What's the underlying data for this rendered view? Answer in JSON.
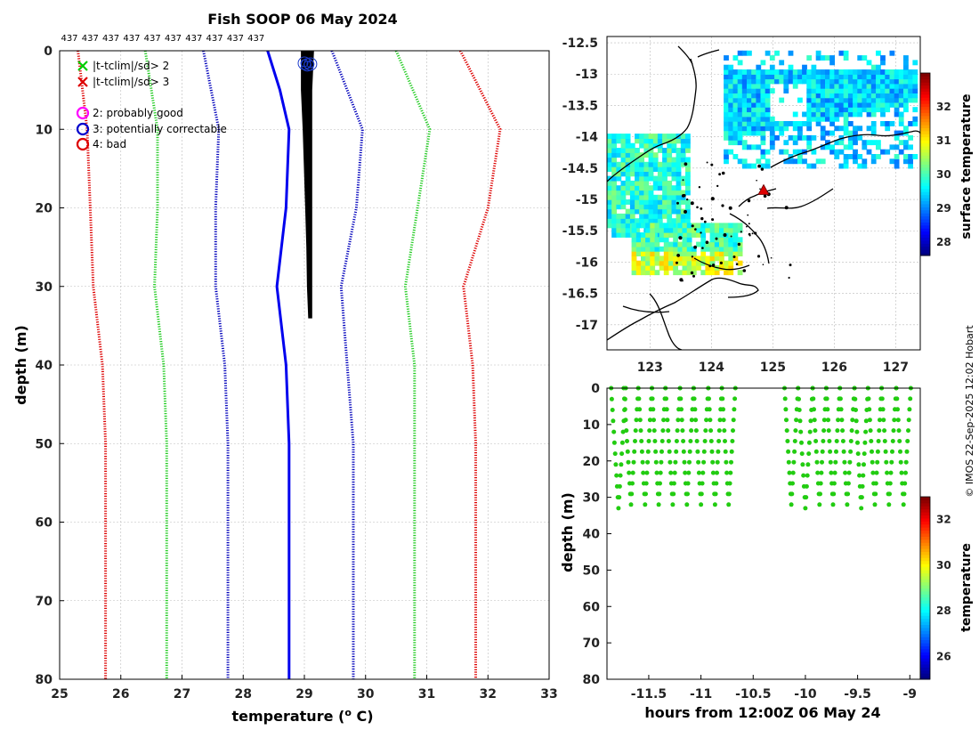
{
  "credit": "© IMOS 22-Sep-2025 12:02 Hobart",
  "chart_data": [
    {
      "type": "line",
      "title": "Fish SOOP 06 May 2024",
      "xlabel": "temperature (",
      "xlabel_sup": "o",
      "xlabel_tail": " C)",
      "ylabel": "depth (m)",
      "xlim": [
        25,
        33
      ],
      "ylim": [
        0,
        80
      ],
      "y_reversed": true,
      "grid": true,
      "x_ticks": [
        25,
        26,
        27,
        28,
        29,
        30,
        31,
        32,
        33
      ],
      "y_ticks": [
        0,
        10,
        20,
        30,
        40,
        50,
        60,
        70,
        80
      ],
      "top_counts": [
        "437",
        "437",
        "437",
        "437",
        "437",
        "437",
        "437",
        "437",
        "437",
        "437"
      ],
      "legend": [
        {
          "marker": "x",
          "color": "#00cc00",
          "label": "|t-tclim|/sd> 2"
        },
        {
          "marker": "x",
          "color": "#dd0000",
          "label": "|t-tclim|/sd> 3"
        },
        {
          "marker": "o",
          "color": "#ff00ff",
          "label": "2: probably good"
        },
        {
          "marker": "o",
          "color": "#0000cc",
          "label": "3: potentially correctable"
        },
        {
          "marker": "o",
          "color": "#dd0000",
          "label": "4: bad"
        }
      ],
      "series": [
        {
          "name": "clim -3sd",
          "color": "#dd0000",
          "style": "dotted",
          "depth": [
            0,
            10,
            20,
            30,
            40,
            50,
            80
          ],
          "temp": [
            25.3,
            25.45,
            25.5,
            25.55,
            25.7,
            25.75,
            25.75
          ]
        },
        {
          "name": "clim -2sd",
          "color": "#22cc22",
          "style": "dotted",
          "depth": [
            0,
            10,
            20,
            30,
            40,
            50,
            80
          ],
          "temp": [
            26.4,
            26.6,
            26.6,
            26.55,
            26.7,
            26.75,
            26.75
          ]
        },
        {
          "name": "clim -1sd",
          "color": "#0000bb",
          "style": "dotted",
          "depth": [
            0,
            10,
            20,
            30,
            40,
            50,
            80
          ],
          "temp": [
            27.35,
            27.6,
            27.55,
            27.55,
            27.7,
            27.75,
            27.75
          ]
        },
        {
          "name": "climatology",
          "color": "#0000ee",
          "style": "solid",
          "depth": [
            0,
            5,
            10,
            20,
            30,
            40,
            50,
            80
          ],
          "temp": [
            28.4,
            28.6,
            28.75,
            28.7,
            28.55,
            28.7,
            28.75,
            28.75
          ]
        },
        {
          "name": "clim +1sd",
          "color": "#0000bb",
          "style": "dotted",
          "depth": [
            0,
            10,
            20,
            30,
            40,
            50,
            80
          ],
          "temp": [
            29.45,
            29.95,
            29.85,
            29.6,
            29.7,
            29.8,
            29.8
          ]
        },
        {
          "name": "clim +2sd",
          "color": "#22cc22",
          "style": "dotted",
          "depth": [
            0,
            10,
            20,
            30,
            40,
            50,
            80
          ],
          "temp": [
            30.5,
            31.05,
            30.85,
            30.65,
            30.8,
            30.8,
            30.8
          ]
        },
        {
          "name": "clim +3sd",
          "color": "#dd0000",
          "style": "dotted",
          "depth": [
            0,
            10,
            20,
            30,
            40,
            50,
            80
          ],
          "temp": [
            31.55,
            32.2,
            32.0,
            31.6,
            31.75,
            31.8,
            31.8
          ]
        }
      ],
      "profiles": {
        "color": "#000000",
        "max_depth": 34,
        "band": [
          {
            "depth": 0,
            "tmin": 28.95,
            "tmax": 29.15
          },
          {
            "depth": 5,
            "tmin": 28.95,
            "tmax": 29.12
          },
          {
            "depth": 10,
            "tmin": 28.98,
            "tmax": 29.12
          },
          {
            "depth": 15,
            "tmin": 29.0,
            "tmax": 29.12
          },
          {
            "depth": 20,
            "tmin": 29.02,
            "tmax": 29.12
          },
          {
            "depth": 25,
            "tmin": 29.04,
            "tmax": 29.12
          },
          {
            "depth": 30,
            "tmin": 29.05,
            "tmax": 29.12
          },
          {
            "depth": 34,
            "tmin": 29.07,
            "tmax": 29.12
          }
        ],
        "flags": [
          {
            "temp": 29.0,
            "depth": 0.8,
            "color": "#1a3acc"
          },
          {
            "temp": 29.1,
            "depth": 0.9,
            "color": "#1a3acc"
          },
          {
            "temp": 29.05,
            "depth": 1.0,
            "color": "#1a3acc"
          }
        ]
      }
    },
    {
      "type": "heatmap",
      "xlim": [
        122.3,
        127.4
      ],
      "ylim": [
        -17.4,
        -12.4
      ],
      "x_ticks": [
        123,
        124,
        125,
        126,
        127
      ],
      "y_ticks": [
        -12.5,
        -13,
        -13.5,
        -14,
        -14.5,
        -15,
        -15.5,
        -16,
        -16.5,
        -17
      ],
      "grid": true,
      "colorbar": {
        "label": "surface temperature",
        "range": [
          27.6,
          33.0
        ],
        "ticks": [
          28,
          29,
          30,
          31,
          32
        ]
      },
      "ship_position": {
        "lon": 124.85,
        "lat": -14.85,
        "marker": "triangle",
        "color": "#dd0000"
      },
      "regions": [
        {
          "name": "northern offshore",
          "lon": [
            124.2,
            127.3
          ],
          "lat": [
            -14.5,
            -12.7
          ],
          "temp": 29.4
        },
        {
          "name": "western coastal",
          "lon": [
            122.3,
            123.6
          ],
          "lat": [
            -15.6,
            -14.0
          ],
          "temp": 29.8
        },
        {
          "name": "southern coastal",
          "lon": [
            122.7,
            124.5
          ],
          "lat": [
            -16.2,
            -15.4
          ],
          "temp": 30.0
        }
      ]
    },
    {
      "type": "scatter",
      "xlabel": "hours from 12:00Z 06 May 24",
      "ylabel": "depth (m)",
      "xlim": [
        -11.9,
        -8.9
      ],
      "ylim": [
        0,
        80
      ],
      "y_reversed": true,
      "x_ticks": [
        -11.5,
        -11,
        -10.5,
        -10,
        -9.5,
        -9
      ],
      "x_tick_labels": [
        "-11.5",
        "-11",
        "-10.5",
        "-10",
        "-9.5",
        "-9"
      ],
      "y_ticks": [
        0,
        10,
        20,
        30,
        40,
        50,
        60,
        70,
        80
      ],
      "point_color": "#22cc11",
      "casts": [
        {
          "start": -11.86,
          "end": -11.72,
          "bottom": 33
        },
        {
          "start": -11.74,
          "end": -11.6,
          "bottom": 32
        },
        {
          "start": -11.6,
          "end": -11.47,
          "bottom": 32
        },
        {
          "start": -11.47,
          "end": -11.34,
          "bottom": 32
        },
        {
          "start": -11.34,
          "end": -11.2,
          "bottom": 32
        },
        {
          "start": -11.2,
          "end": -11.07,
          "bottom": 32
        },
        {
          "start": -11.07,
          "end": -10.93,
          "bottom": 32
        },
        {
          "start": -10.93,
          "end": -10.8,
          "bottom": 32
        },
        {
          "start": -10.8,
          "end": -10.67,
          "bottom": 32
        },
        {
          "start": -10.2,
          "end": -10.07,
          "bottom": 32
        },
        {
          "start": -10.07,
          "end": -9.93,
          "bottom": 33
        },
        {
          "start": -9.93,
          "end": -9.8,
          "bottom": 32
        },
        {
          "start": -9.8,
          "end": -9.67,
          "bottom": 32
        },
        {
          "start": -9.67,
          "end": -9.53,
          "bottom": 32
        },
        {
          "start": -9.53,
          "end": -9.4,
          "bottom": 33
        },
        {
          "start": -9.4,
          "end": -9.27,
          "bottom": 32
        },
        {
          "start": -9.27,
          "end": -9.13,
          "bottom": 32
        },
        {
          "start": -9.13,
          "end": -8.99,
          "bottom": 32
        }
      ],
      "colorbar": {
        "label": "temperature",
        "range": [
          25.0,
          33.0
        ],
        "ticks": [
          26,
          28,
          30,
          32
        ]
      }
    }
  ]
}
